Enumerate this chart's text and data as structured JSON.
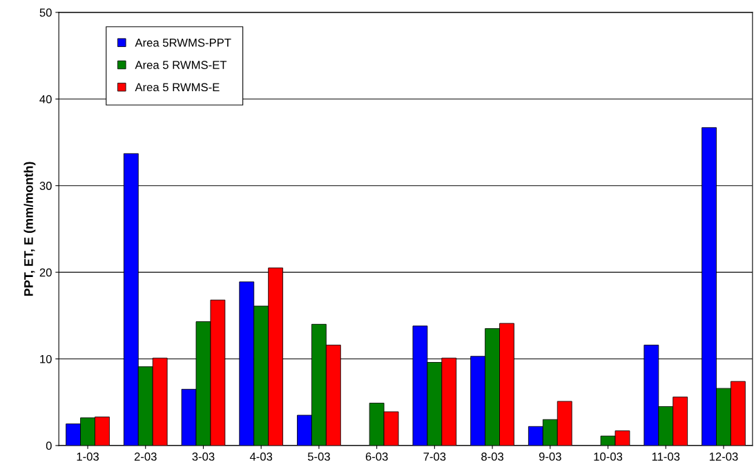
{
  "chart_data": {
    "type": "bar",
    "ylabel": "PPT, ET, E (mm/month)",
    "categories": [
      "1-03",
      "2-03",
      "3-03",
      "4-03",
      "5-03",
      "6-03",
      "7-03",
      "8-03",
      "9-03",
      "10-03",
      "11-03",
      "12-03"
    ],
    "series": [
      {
        "name": "Area 5RWMS-PPT",
        "color": "#0000ff",
        "values": [
          2.5,
          33.7,
          6.5,
          18.9,
          3.5,
          0,
          13.8,
          10.3,
          2.2,
          0,
          11.6,
          36.7
        ]
      },
      {
        "name": "Area 5 RWMS-ET",
        "color": "#008000",
        "values": [
          3.2,
          9.1,
          14.3,
          16.1,
          14.0,
          4.9,
          9.6,
          13.5,
          3.0,
          1.1,
          4.5,
          6.6
        ]
      },
      {
        "name": "Area 5 RWMS-E",
        "color": "#ff0000",
        "values": [
          3.3,
          10.1,
          16.8,
          20.5,
          11.6,
          3.9,
          10.1,
          14.1,
          5.1,
          1.7,
          5.6,
          7.4
        ]
      }
    ],
    "ylim": [
      0,
      50
    ],
    "yticks": [
      0,
      10,
      20,
      30,
      40,
      50
    ],
    "grid": "y",
    "legend": "top left"
  }
}
